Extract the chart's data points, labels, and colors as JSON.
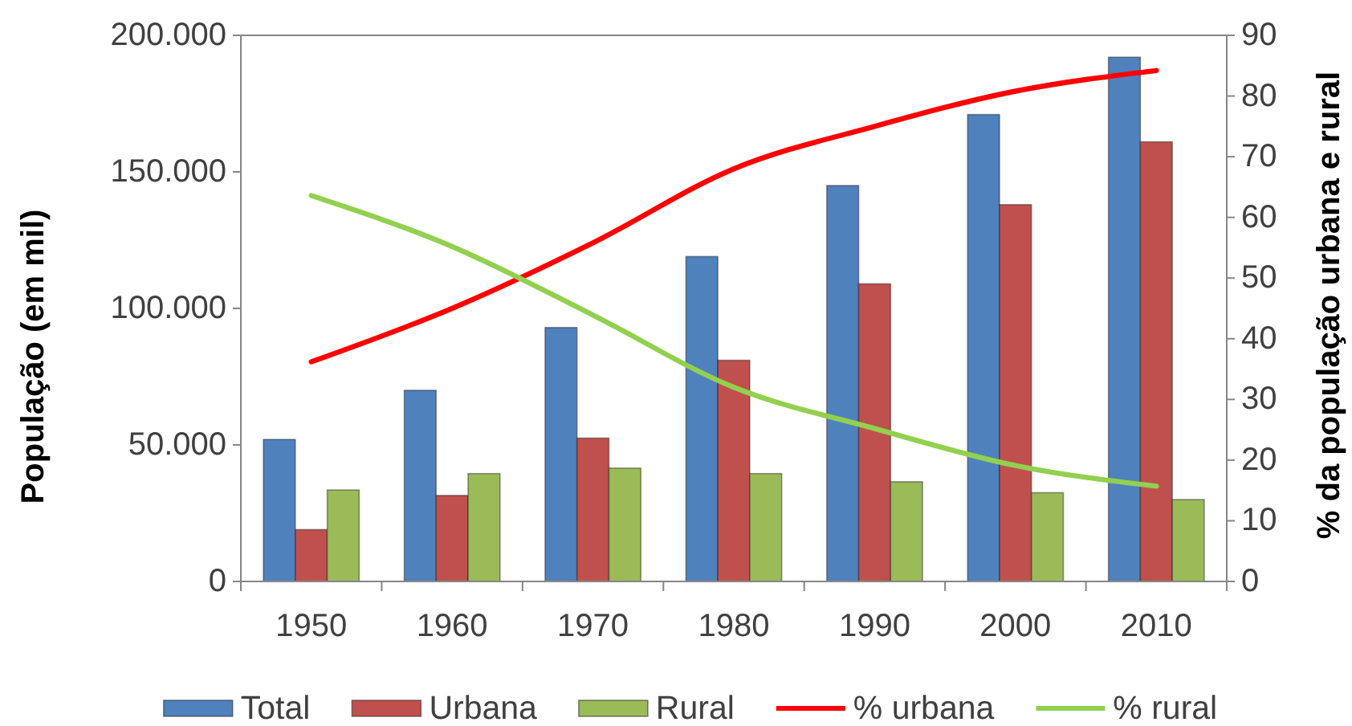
{
  "chart_data": {
    "type": "bar",
    "categories": [
      "1950",
      "1960",
      "1970",
      "1980",
      "1990",
      "2000",
      "2010"
    ],
    "ylabel": "População (em mil)",
    "y2label": "% da população urbana e rural",
    "series": [
      {
        "name": "Total",
        "color": "#4f81bd",
        "values": [
          52000,
          70000,
          93000,
          119000,
          145000,
          171000,
          192000
        ]
      },
      {
        "name": "Urbana",
        "color": "#c0504d",
        "values": [
          19000,
          31500,
          52500,
          81000,
          109000,
          138000,
          161000
        ]
      },
      {
        "name": "Rural",
        "color": "#9bbb59",
        "values": [
          33500,
          39500,
          41500,
          39500,
          36500,
          32500,
          30000
        ]
      },
      {
        "name": "% urbana",
        "type": "line",
        "axis": "y2",
        "color": "#ff0000",
        "values": [
          36.2,
          45,
          55.8,
          68,
          75,
          80.8,
          84.2
        ]
      },
      {
        "name": "% rural",
        "type": "line",
        "axis": "y2",
        "color": "#92d050",
        "values": [
          63.6,
          55.2,
          43.9,
          32,
          25.2,
          19.1,
          15.7
        ]
      }
    ],
    "ylim": [
      0,
      200000
    ],
    "yticks": [
      0,
      {
        "value": 50000,
        "label": "50.000"
      },
      {
        "value": 100000,
        "label": "100.000"
      },
      {
        "value": 150000,
        "label": "150.000"
      },
      {
        "value": 200000,
        "label": "200.000"
      }
    ],
    "y2lim": [
      0,
      90
    ],
    "y2ticks": [
      0,
      10,
      20,
      30,
      40,
      50,
      60,
      70,
      80,
      90
    ],
    "legend": "bottom"
  }
}
